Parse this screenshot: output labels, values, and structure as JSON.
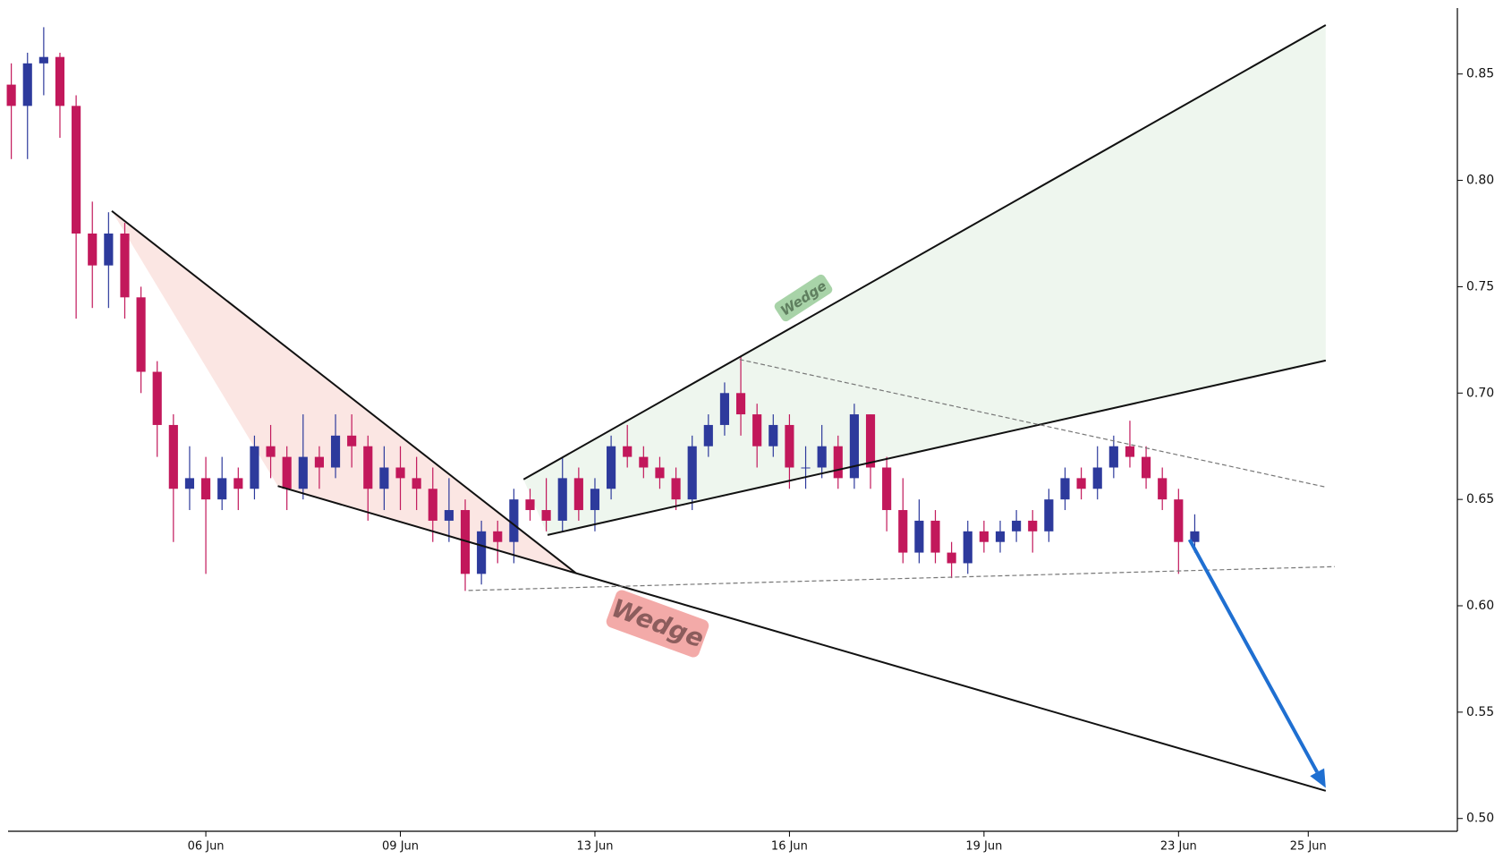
{
  "chart_data": {
    "type": "candlestick",
    "x": [
      0,
      0.25,
      0.5,
      0.75,
      1,
      1.25,
      1.5,
      1.75,
      2,
      2.25,
      2.5,
      2.75,
      3,
      3.25,
      3.5,
      3.75,
      4,
      4.25,
      4.5,
      4.75,
      5,
      5.25,
      5.5,
      5.75,
      6,
      6.25,
      6.5,
      6.75,
      7,
      7.25,
      7.5,
      7.75,
      8,
      8.25,
      8.5,
      8.75,
      9,
      9.25,
      9.5,
      9.75,
      10,
      10.25,
      10.5,
      10.75,
      11,
      11.25,
      11.5,
      11.75,
      12,
      12.25,
      12.5,
      12.75,
      13,
      13.25,
      13.5,
      13.75,
      14,
      14.25,
      14.5,
      14.75,
      15,
      15.25,
      15.5,
      15.75,
      16,
      16.25,
      16.5,
      16.75,
      17,
      17.25,
      17.5,
      17.75,
      18,
      18.25
    ],
    "open": [
      0.845,
      0.835,
      0.855,
      0.858,
      0.835,
      0.775,
      0.76,
      0.775,
      0.745,
      0.71,
      0.685,
      0.655,
      0.66,
      0.65,
      0.66,
      0.655,
      0.675,
      0.67,
      0.655,
      0.67,
      0.665,
      0.68,
      0.675,
      0.655,
      0.665,
      0.66,
      0.655,
      0.64,
      0.645,
      0.615,
      0.635,
      0.63,
      0.65,
      0.645,
      0.64,
      0.66,
      0.645,
      0.655,
      0.675,
      0.67,
      0.665,
      0.66,
      0.65,
      0.675,
      0.685,
      0.7,
      0.69,
      0.675,
      0.685,
      0.665,
      0.665,
      0.675,
      0.66,
      0.69,
      0.665,
      0.645,
      0.625,
      0.64,
      0.625,
      0.62,
      0.635,
      0.63,
      0.635,
      0.64,
      0.635,
      0.65,
      0.66,
      0.655,
      0.665,
      0.675,
      0.67,
      0.66,
      0.65,
      0.63
    ],
    "high": [
      0.855,
      0.86,
      0.872,
      0.86,
      0.84,
      0.79,
      0.785,
      0.78,
      0.75,
      0.715,
      0.69,
      0.675,
      0.67,
      0.67,
      0.665,
      0.68,
      0.685,
      0.675,
      0.69,
      0.675,
      0.69,
      0.69,
      0.68,
      0.675,
      0.675,
      0.67,
      0.665,
      0.66,
      0.65,
      0.64,
      0.64,
      0.655,
      0.655,
      0.66,
      0.67,
      0.665,
      0.66,
      0.68,
      0.685,
      0.675,
      0.67,
      0.665,
      0.68,
      0.69,
      0.705,
      0.717,
      0.695,
      0.69,
      0.69,
      0.675,
      0.685,
      0.68,
      0.695,
      0.69,
      0.67,
      0.66,
      0.65,
      0.645,
      0.63,
      0.64,
      0.64,
      0.64,
      0.645,
      0.645,
      0.655,
      0.665,
      0.665,
      0.675,
      0.68,
      0.687,
      0.675,
      0.665,
      0.655,
      0.643
    ],
    "low": [
      0.81,
      0.81,
      0.84,
      0.82,
      0.735,
      0.74,
      0.74,
      0.735,
      0.7,
      0.67,
      0.63,
      0.645,
      0.615,
      0.645,
      0.645,
      0.65,
      0.66,
      0.645,
      0.65,
      0.655,
      0.66,
      0.665,
      0.64,
      0.645,
      0.645,
      0.645,
      0.63,
      0.63,
      0.607,
      0.61,
      0.62,
      0.62,
      0.64,
      0.635,
      0.635,
      0.64,
      0.635,
      0.65,
      0.665,
      0.66,
      0.655,
      0.645,
      0.645,
      0.67,
      0.68,
      0.68,
      0.665,
      0.67,
      0.655,
      0.655,
      0.66,
      0.655,
      0.655,
      0.655,
      0.635,
      0.62,
      0.62,
      0.62,
      0.613,
      0.615,
      0.625,
      0.625,
      0.63,
      0.625,
      0.63,
      0.645,
      0.65,
      0.65,
      0.66,
      0.665,
      0.655,
      0.645,
      0.615,
      0.625
    ],
    "close": [
      0.835,
      0.855,
      0.858,
      0.835,
      0.775,
      0.76,
      0.775,
      0.745,
      0.71,
      0.685,
      0.655,
      0.66,
      0.65,
      0.66,
      0.655,
      0.675,
      0.67,
      0.655,
      0.67,
      0.665,
      0.68,
      0.675,
      0.655,
      0.665,
      0.66,
      0.655,
      0.64,
      0.645,
      0.615,
      0.635,
      0.63,
      0.65,
      0.645,
      0.64,
      0.66,
      0.645,
      0.655,
      0.675,
      0.67,
      0.665,
      0.66,
      0.65,
      0.675,
      0.685,
      0.7,
      0.69,
      0.675,
      0.685,
      0.665,
      0.665,
      0.675,
      0.66,
      0.69,
      0.665,
      0.645,
      0.625,
      0.64,
      0.625,
      0.62,
      0.635,
      0.63,
      0.635,
      0.64,
      0.635,
      0.65,
      0.66,
      0.655,
      0.665,
      0.675,
      0.67,
      0.66,
      0.65,
      0.63,
      0.635
    ],
    "up_color": "#2d3a9c",
    "down_color": "#c2185b",
    "xlim": [
      -0.05,
      22.3
    ],
    "xticks": [
      {
        "value": 3,
        "label": "06 Jun"
      },
      {
        "value": 6,
        "label": "09 Jun"
      },
      {
        "value": 9,
        "label": "13 Jun"
      },
      {
        "value": 12,
        "label": "16 Jun"
      },
      {
        "value": 15,
        "label": "19 Jun"
      },
      {
        "value": 18,
        "label": "23 Jun"
      },
      {
        "value": 20,
        "label": "25 Jun"
      }
    ],
    "ylim": [
      0.494,
      0.881
    ],
    "yticks": [
      {
        "value": 0.5,
        "label": "0.50"
      },
      0.55,
      {
        "value": 0.6,
        "label": "0.60"
      },
      0.65,
      {
        "value": 0.7,
        "label": "0.70"
      },
      0.75,
      {
        "value": 0.8,
        "label": "0.80"
      },
      0.85
    ],
    "y_axis_side": "right",
    "annotations": {
      "fills": [
        {
          "color": "#f9d5d1",
          "x": [
            1.55,
            4.11,
            8.71
          ],
          "y": [
            0.7856,
            0.6563,
            0.6153
          ]
        },
        {
          "color": "#e3f0e3",
          "x": [
            7.9,
            20.27,
            20.27,
            8.27
          ],
          "y": [
            0.6594,
            0.873,
            0.7153,
            0.6333
          ]
        }
      ],
      "lines": [
        {
          "color": "#111111",
          "dashed": false,
          "x": [
            1.55,
            8.71
          ],
          "y": [
            0.7856,
            0.6153
          ]
        },
        {
          "color": "#111111",
          "dashed": false,
          "x": [
            4.11,
            8.71,
            20.27
          ],
          "y": [
            0.6563,
            0.6153,
            0.513
          ]
        },
        {
          "color": "#111111",
          "dashed": false,
          "x": [
            7.9,
            20.27
          ],
          "y": [
            0.6594,
            0.873
          ]
        },
        {
          "color": "#111111",
          "dashed": false,
          "x": [
            8.27,
            20.27
          ],
          "y": [
            0.6333,
            0.7153
          ]
        },
        {
          "color": "#777777",
          "dashed": true,
          "x": [
            11.23,
            20.27
          ],
          "y": [
            0.7158,
            0.6558
          ]
        },
        {
          "color": "#777777",
          "dashed": true,
          "x": [
            7.05,
            20.41
          ],
          "y": [
            0.6072,
            0.6184
          ]
        }
      ],
      "arrow": {
        "color": "#1f6fd1",
        "x": [
          18.17,
          20.27
        ],
        "y": [
          0.6311,
          0.5144
        ]
      },
      "labels": [
        "Wedge",
        "Wedge"
      ]
    }
  }
}
